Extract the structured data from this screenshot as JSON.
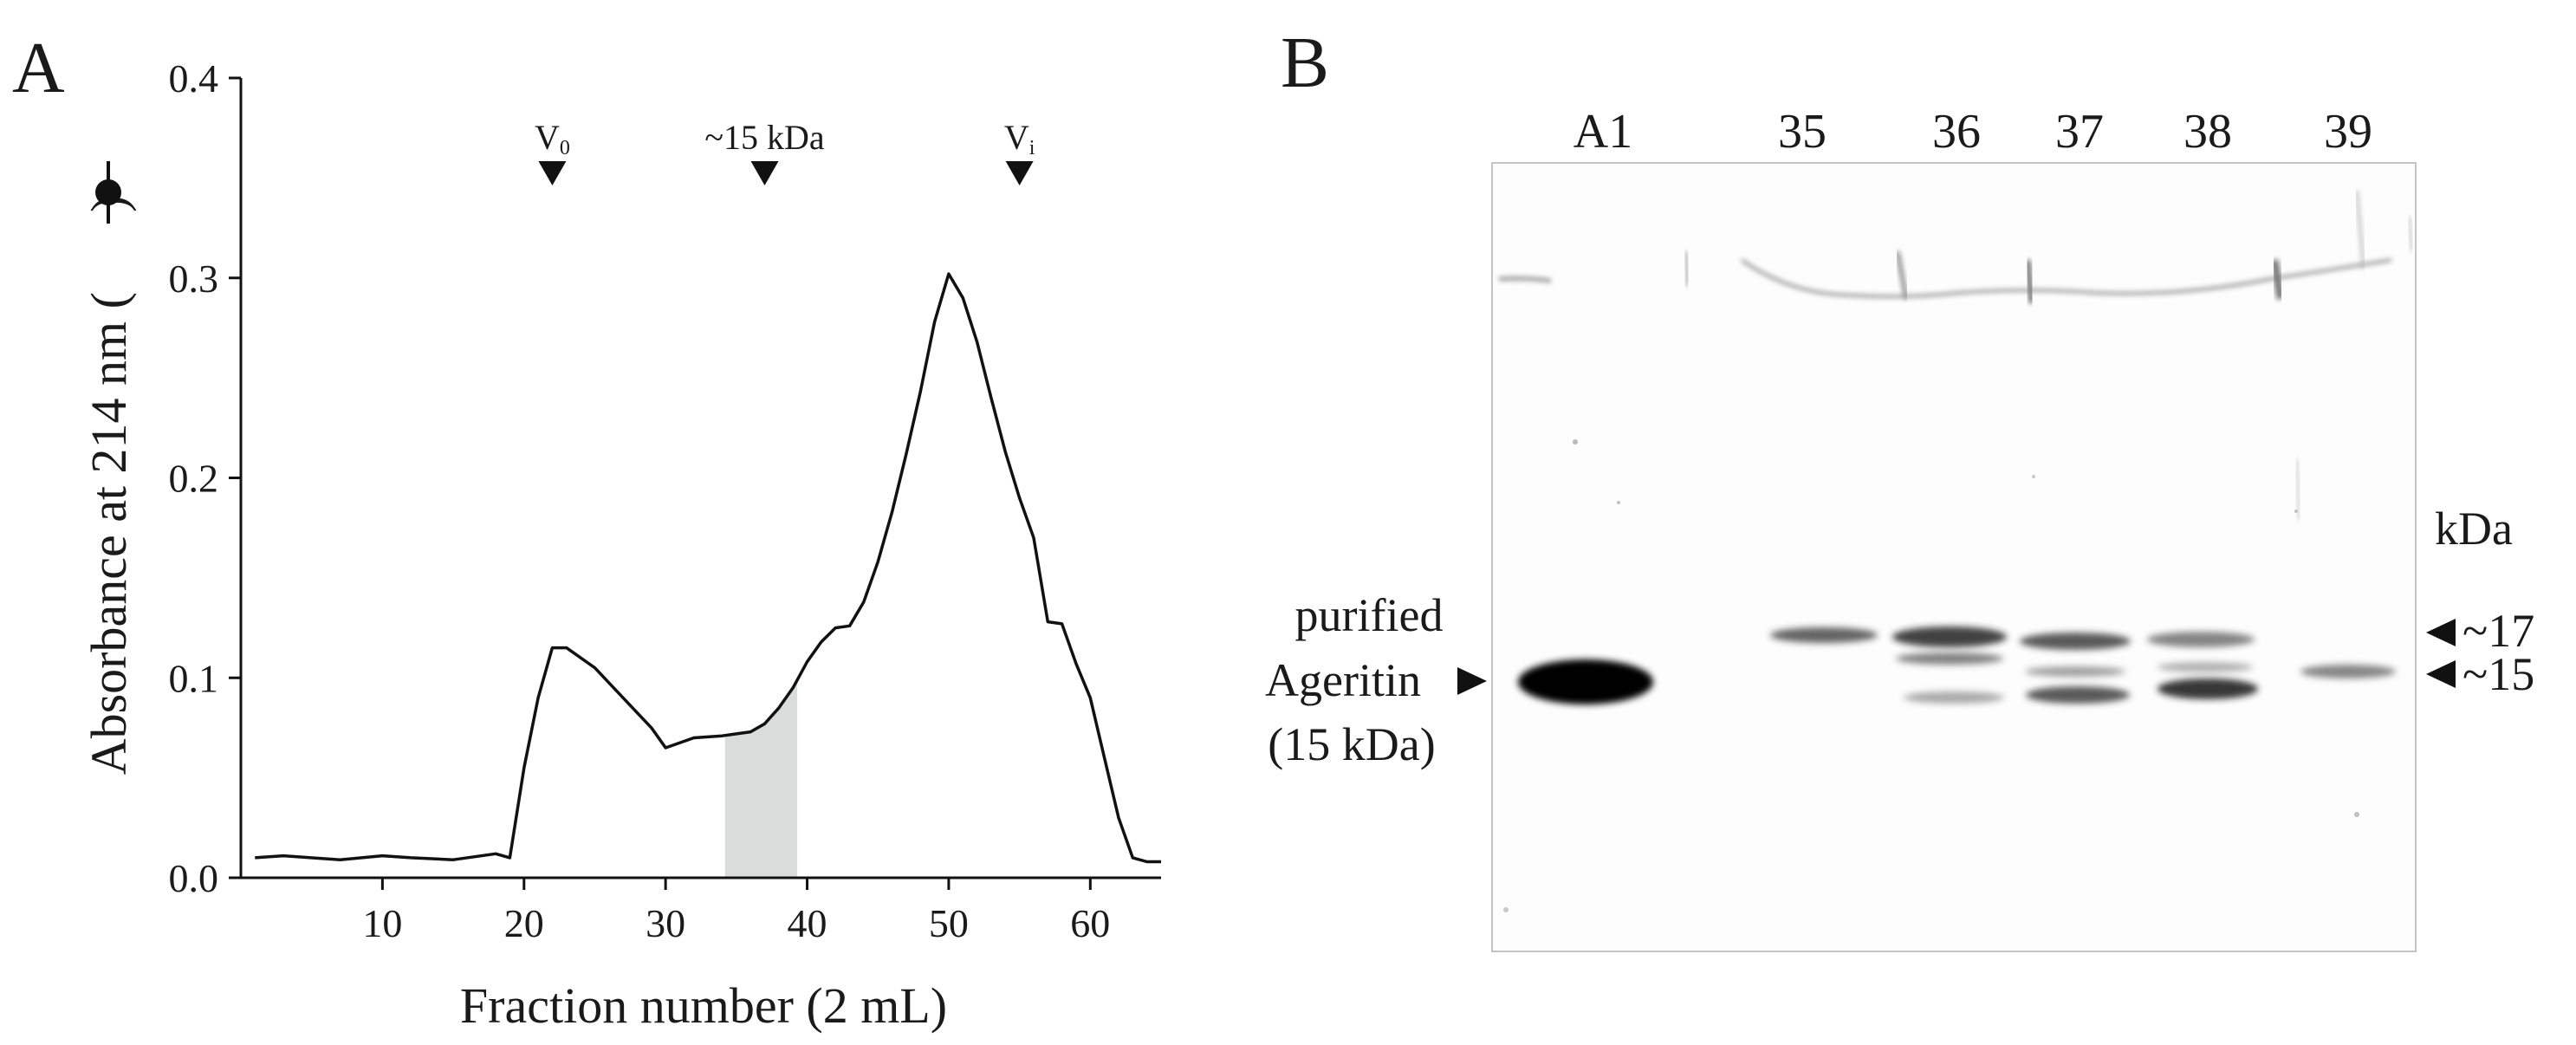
{
  "panel_a": {
    "letter": "A",
    "markers": [
      {
        "label": "V",
        "sub": "0",
        "x": 22
      },
      {
        "label": "~15 kDa",
        "sub": "",
        "x": 37
      },
      {
        "label": "V",
        "sub": "i",
        "x": 55
      }
    ]
  },
  "chart_data": {
    "type": "line",
    "title": "",
    "xlabel": "Fraction number (2 mL)",
    "ylabel": "Absorbance at 214 nm (",
    "ylabel_tail": ")",
    "legend_symbol": "filled-circle-with-line",
    "xlim": [
      0,
      65
    ],
    "ylim": [
      0,
      0.4
    ],
    "xticks": [
      10,
      20,
      30,
      40,
      50,
      60
    ],
    "yticks": [
      "0.0",
      "0.1",
      "0.2",
      "0.3",
      "0.4"
    ],
    "grid": false,
    "shaded_region": {
      "x_start": 34.2,
      "x_end": 39.3,
      "color": "#d9dcdb"
    },
    "series": [
      {
        "x": [
          1,
          3,
          7,
          10,
          12,
          15,
          18,
          19,
          20,
          21,
          22,
          23,
          25,
          27,
          29,
          30,
          32,
          34,
          35,
          36,
          37,
          38,
          39,
          40,
          41,
          42,
          43,
          44,
          45,
          46,
          47,
          48,
          49,
          50,
          51,
          52,
          53,
          54,
          55,
          56,
          57,
          58,
          59,
          60,
          61,
          62,
          63,
          64,
          65
        ],
        "y": [
          0.01,
          0.011,
          0.009,
          0.011,
          0.01,
          0.009,
          0.012,
          0.01,
          0.055,
          0.09,
          0.115,
          0.115,
          0.105,
          0.09,
          0.075,
          0.065,
          0.07,
          0.071,
          0.072,
          0.073,
          0.077,
          0.085,
          0.095,
          0.108,
          0.118,
          0.125,
          0.126,
          0.138,
          0.158,
          0.183,
          0.212,
          0.243,
          0.278,
          0.302,
          0.29,
          0.268,
          0.24,
          0.213,
          0.19,
          0.17,
          0.128,
          0.127,
          0.107,
          0.09,
          0.06,
          0.03,
          0.01,
          0.008,
          0.008
        ]
      }
    ]
  },
  "panel_b": {
    "letter": "B",
    "lanes": [
      "A1",
      "35",
      "36",
      "37",
      "38",
      "39"
    ],
    "left_label_lines": [
      "purified",
      "Ageritin",
      "(15 kDa)"
    ],
    "kda_header": "kDa",
    "markers": [
      "~17",
      "~15"
    ]
  },
  "colors": {
    "line": "#111111",
    "shade": "#d9dcdb",
    "blot_border": "#bfbfbf",
    "band": "#1a1a1a"
  }
}
